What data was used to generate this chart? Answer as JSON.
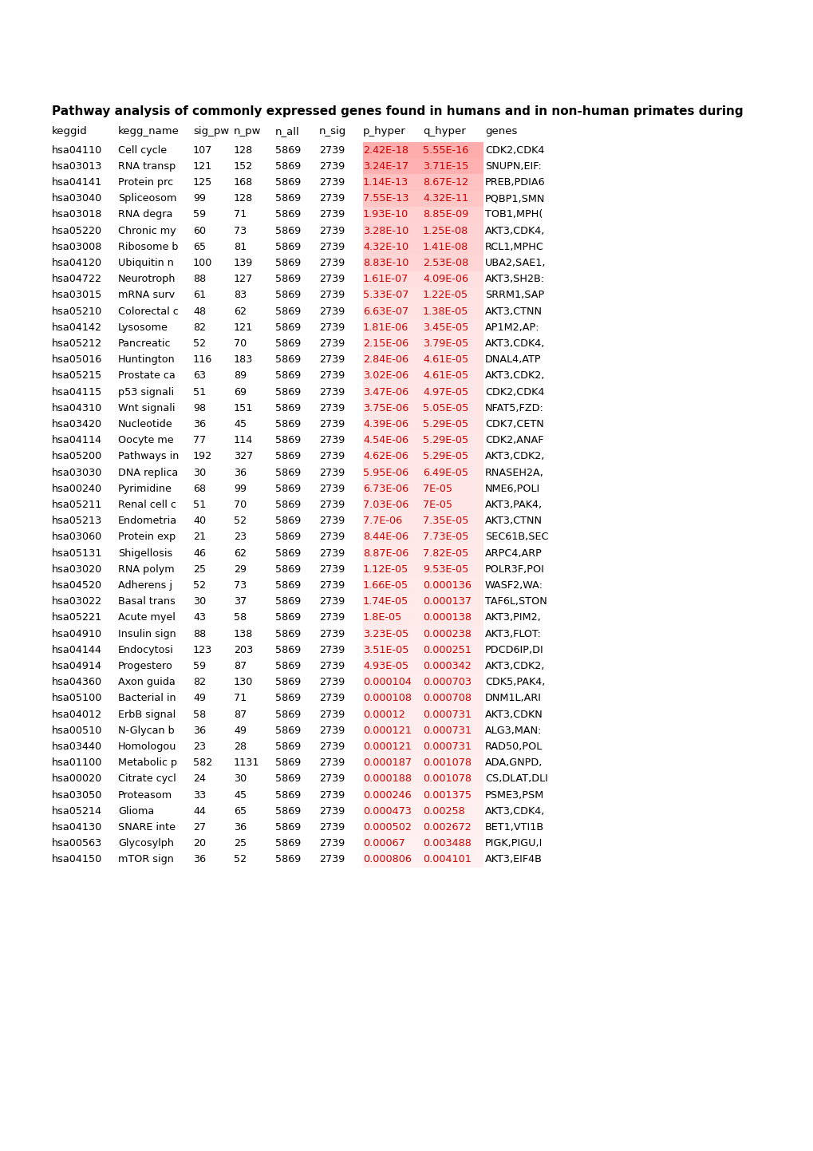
{
  "title": "Pathway analysis of commonly expressed genes found in humans and in non-human primates during",
  "rows": [
    [
      "hsa04110",
      "Cell cycle",
      "107",
      "128",
      "5869",
      "2739",
      "2.42E-18",
      "5.55E-16",
      "CDK2,CDK4"
    ],
    [
      "hsa03013",
      "RNA transp",
      "121",
      "152",
      "5869",
      "2739",
      "3.24E-17",
      "3.71E-15",
      "SNUPN,EIF:"
    ],
    [
      "hsa04141",
      "Protein prc",
      "125",
      "168",
      "5869",
      "2739",
      "1.14E-13",
      "8.67E-12",
      "PREB,PDIA6"
    ],
    [
      "hsa03040",
      "Spliceosom",
      "99",
      "128",
      "5869",
      "2739",
      "7.55E-13",
      "4.32E-11",
      "PQBP1,SMN"
    ],
    [
      "hsa03018",
      "RNA degra",
      "59",
      "71",
      "5869",
      "2739",
      "1.93E-10",
      "8.85E-09",
      "TOB1,MPH("
    ],
    [
      "hsa05220",
      "Chronic my",
      "60",
      "73",
      "5869",
      "2739",
      "3.28E-10",
      "1.25E-08",
      "AKT3,CDK4,"
    ],
    [
      "hsa03008",
      "Ribosome b",
      "65",
      "81",
      "5869",
      "2739",
      "4.32E-10",
      "1.41E-08",
      "RCL1,MPHC"
    ],
    [
      "hsa04120",
      "Ubiquitin n",
      "100",
      "139",
      "5869",
      "2739",
      "8.83E-10",
      "2.53E-08",
      "UBA2,SAE1,"
    ],
    [
      "hsa04722",
      "Neurotroph",
      "88",
      "127",
      "5869",
      "2739",
      "1.61E-07",
      "4.09E-06",
      "AKT3,SH2B:"
    ],
    [
      "hsa03015",
      "mRNA surv",
      "61",
      "83",
      "5869",
      "2739",
      "5.33E-07",
      "1.22E-05",
      "SRRM1,SAP"
    ],
    [
      "hsa05210",
      "Colorectal c",
      "48",
      "62",
      "5869",
      "2739",
      "6.63E-07",
      "1.38E-05",
      "AKT3,CTNN"
    ],
    [
      "hsa04142",
      "Lysosome",
      "82",
      "121",
      "5869",
      "2739",
      "1.81E-06",
      "3.45E-05",
      "AP1M2,AP:"
    ],
    [
      "hsa05212",
      "Pancreatic",
      "52",
      "70",
      "5869",
      "2739",
      "2.15E-06",
      "3.79E-05",
      "AKT3,CDK4,"
    ],
    [
      "hsa05016",
      "Huntington",
      "116",
      "183",
      "5869",
      "2739",
      "2.84E-06",
      "4.61E-05",
      "DNAL4,ATP"
    ],
    [
      "hsa05215",
      "Prostate ca",
      "63",
      "89",
      "5869",
      "2739",
      "3.02E-06",
      "4.61E-05",
      "AKT3,CDK2,"
    ],
    [
      "hsa04115",
      "p53 signali",
      "51",
      "69",
      "5869",
      "2739",
      "3.47E-06",
      "4.97E-05",
      "CDK2,CDK4"
    ],
    [
      "hsa04310",
      "Wnt signali",
      "98",
      "151",
      "5869",
      "2739",
      "3.75E-06",
      "5.05E-05",
      "NFAT5,FZD:"
    ],
    [
      "hsa03420",
      "Nucleotide",
      "36",
      "45",
      "5869",
      "2739",
      "4.39E-06",
      "5.29E-05",
      "CDK7,CETN"
    ],
    [
      "hsa04114",
      "Oocyte me",
      "77",
      "114",
      "5869",
      "2739",
      "4.54E-06",
      "5.29E-05",
      "CDK2,ANAF"
    ],
    [
      "hsa05200",
      "Pathways in",
      "192",
      "327",
      "5869",
      "2739",
      "4.62E-06",
      "5.29E-05",
      "AKT3,CDK2,"
    ],
    [
      "hsa03030",
      "DNA replica",
      "30",
      "36",
      "5869",
      "2739",
      "5.95E-06",
      "6.49E-05",
      "RNASEH2A,"
    ],
    [
      "hsa00240",
      "Pyrimidine",
      "68",
      "99",
      "5869",
      "2739",
      "6.73E-06",
      "7E-05",
      "NME6,POLI"
    ],
    [
      "hsa05211",
      "Renal cell c",
      "51",
      "70",
      "5869",
      "2739",
      "7.03E-06",
      "7E-05",
      "AKT3,PAK4,"
    ],
    [
      "hsa05213",
      "Endometria",
      "40",
      "52",
      "5869",
      "2739",
      "7.7E-06",
      "7.35E-05",
      "AKT3,CTNN"
    ],
    [
      "hsa03060",
      "Protein exp",
      "21",
      "23",
      "5869",
      "2739",
      "8.44E-06",
      "7.73E-05",
      "SEC61B,SEC"
    ],
    [
      "hsa05131",
      "Shigellosis",
      "46",
      "62",
      "5869",
      "2739",
      "8.87E-06",
      "7.82E-05",
      "ARPC4,ARP"
    ],
    [
      "hsa03020",
      "RNA polym",
      "25",
      "29",
      "5869",
      "2739",
      "1.12E-05",
      "9.53E-05",
      "POLR3F,POI"
    ],
    [
      "hsa04520",
      "Adherens j",
      "52",
      "73",
      "5869",
      "2739",
      "1.66E-05",
      "0.000136",
      "WASF2,WA:"
    ],
    [
      "hsa03022",
      "Basal trans",
      "30",
      "37",
      "5869",
      "2739",
      "1.74E-05",
      "0.000137",
      "TAF6L,STON"
    ],
    [
      "hsa05221",
      "Acute myel",
      "43",
      "58",
      "5869",
      "2739",
      "1.8E-05",
      "0.000138",
      "AKT3,PIM2,"
    ],
    [
      "hsa04910",
      "Insulin sign",
      "88",
      "138",
      "5869",
      "2739",
      "3.23E-05",
      "0.000238",
      "AKT3,FLOT:"
    ],
    [
      "hsa04144",
      "Endocytosi",
      "123",
      "203",
      "5869",
      "2739",
      "3.51E-05",
      "0.000251",
      "PDCD6IP,DI"
    ],
    [
      "hsa04914",
      "Progestero",
      "59",
      "87",
      "5869",
      "2739",
      "4.93E-05",
      "0.000342",
      "AKT3,CDK2,"
    ],
    [
      "hsa04360",
      "Axon guida",
      "82",
      "130",
      "5869",
      "2739",
      "0.000104",
      "0.000703",
      "CDK5,PAK4,"
    ],
    [
      "hsa05100",
      "Bacterial in",
      "49",
      "71",
      "5869",
      "2739",
      "0.000108",
      "0.000708",
      "DNM1L,ARI"
    ],
    [
      "hsa04012",
      "ErbB signal",
      "58",
      "87",
      "5869",
      "2739",
      "0.00012",
      "0.000731",
      "AKT3,CDKN"
    ],
    [
      "hsa00510",
      "N-Glycan b",
      "36",
      "49",
      "5869",
      "2739",
      "0.000121",
      "0.000731",
      "ALG3,MAN:"
    ],
    [
      "hsa03440",
      "Homologou",
      "23",
      "28",
      "5869",
      "2739",
      "0.000121",
      "0.000731",
      "RAD50,POL"
    ],
    [
      "hsa01100",
      "Metabolic p",
      "582",
      "1131",
      "5869",
      "2739",
      "0.000187",
      "0.001078",
      "ADA,GNPD,"
    ],
    [
      "hsa00020",
      "Citrate cycl",
      "24",
      "30",
      "5869",
      "2739",
      "0.000188",
      "0.001078",
      "CS,DLAT,DLI"
    ],
    [
      "hsa03050",
      "Proteasom",
      "33",
      "45",
      "5869",
      "2739",
      "0.000246",
      "0.001375",
      "PSME3,PSM"
    ],
    [
      "hsa05214",
      "Glioma",
      "44",
      "65",
      "5869",
      "2739",
      "0.000473",
      "0.00258",
      "AKT3,CDK4,"
    ],
    [
      "hsa04130",
      "SNARE inte",
      "27",
      "36",
      "5869",
      "2739",
      "0.000502",
      "0.002672",
      "BET1,VTI1B"
    ],
    [
      "hsa00563",
      "Glycosylph",
      "20",
      "25",
      "5869",
      "2739",
      "0.00067",
      "0.003488",
      "PIGK,PIGU,I"
    ],
    [
      "hsa04150",
      "mTOR sign",
      "36",
      "52",
      "5869",
      "2739",
      "0.000806",
      "0.004101",
      "AKT3,EIF4B"
    ]
  ],
  "headers": [
    "keggid",
    "kegg_name",
    "sig_pw",
    "n_pw",
    "n_all",
    "n_sig",
    "p_hyper",
    "q_hyper",
    "genes"
  ],
  "title_fontsize": 11.0,
  "data_fontsize": 9.2,
  "header_fontsize": 9.5,
  "figure_bg": "#ffffff",
  "text_color": "#000000",
  "highlight_text_color": "#cc0000"
}
